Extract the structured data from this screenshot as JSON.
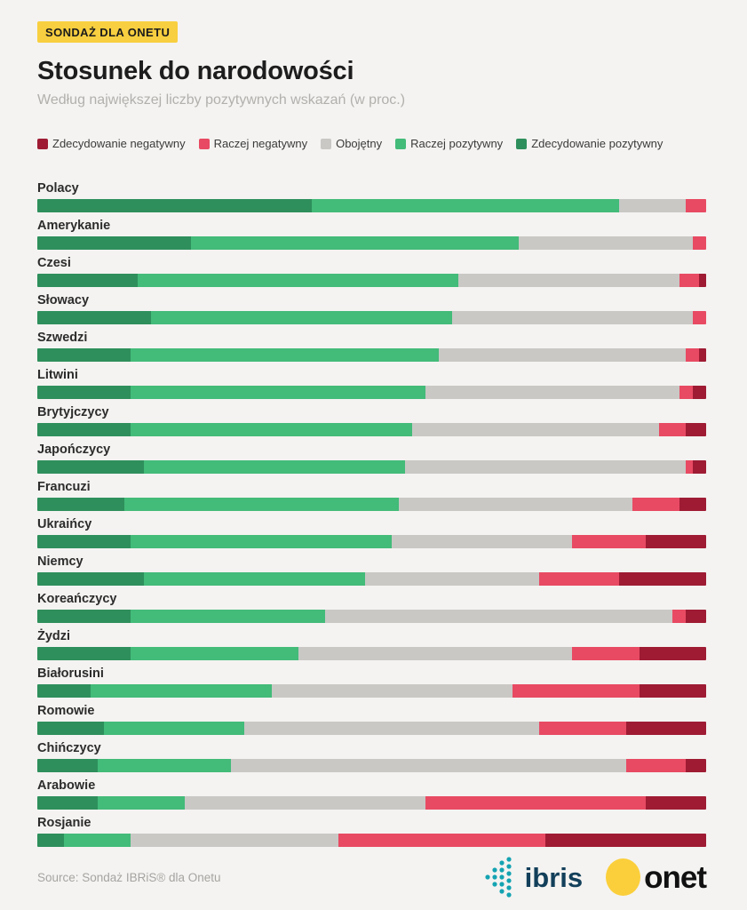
{
  "header": {
    "badge": "SONDAŻ DLA ONETU",
    "title": "Stosunek do narodowości",
    "subtitle": "Według największej liczby pozytywnych wskazań (w proc.)"
  },
  "footer": {
    "source": "Source: Sondaż IBRiS® dla Onetu",
    "ibris_logo_text": "ibris",
    "onet_logo_text": "onet"
  },
  "colors": {
    "background": "#f4f3f1",
    "badge_yellow": "#f8cf40",
    "strongly_negative": "#9e1b33",
    "rather_negative": "#e84a63",
    "neutral": "#c9c8c5",
    "rather_positive": "#43bb79",
    "strongly_positive": "#2e8f5c",
    "ibris_teal": "#14a3b2",
    "ibris_navy": "#123f5a",
    "onet_yellow": "#fbcf3b"
  },
  "chart_data": {
    "type": "bar",
    "stacked": true,
    "orientation": "horizontal",
    "unit": "percent",
    "xlim": [
      0,
      100
    ],
    "grid": false,
    "legend_position": "top",
    "title": "Stosunek do narodowości",
    "subtitle": "Według największej liczby pozytywnych wskazań (w proc.)",
    "legend": [
      {
        "label": "Zdecydowanie negatywny",
        "color": "#9e1b33"
      },
      {
        "label": "Raczej negatywny",
        "color": "#e84a63"
      },
      {
        "label": "Obojętny",
        "color": "#c9c8c5"
      },
      {
        "label": "Raczej pozytywny",
        "color": "#43bb79"
      },
      {
        "label": "Zdecydowanie pozytywny",
        "color": "#2e8f5c"
      }
    ],
    "stack_order_note": "bars are drawn left-to-right: strongly positive, rather positive, neutral, rather negative, strongly negative",
    "categories": [
      "Polacy",
      "Amerykanie",
      "Czesi",
      "Słowacy",
      "Szwedzi",
      "Litwini",
      "Brytyjczycy",
      "Japończycy",
      "Francuzi",
      "Ukraińcy",
      "Niemcy",
      "Koreańczycy",
      "Żydzi",
      "Białorusini",
      "Romowie",
      "Chińczycy",
      "Arabowie",
      "Rosjanie"
    ],
    "series": [
      {
        "name": "Zdecydowanie pozytywny",
        "color": "#2e8f5c",
        "values": [
          41,
          23,
          15,
          17,
          14,
          14,
          14,
          16,
          13,
          14,
          16,
          14,
          14,
          8,
          10,
          9,
          9,
          4
        ]
      },
      {
        "name": "Raczej pozytywny",
        "color": "#43bb79",
        "values": [
          46,
          49,
          48,
          45,
          46,
          44,
          42,
          39,
          41,
          39,
          33,
          29,
          25,
          27,
          21,
          20,
          13,
          10
        ]
      },
      {
        "name": "Obojętny",
        "color": "#c9c8c5",
        "values": [
          10,
          26,
          33,
          36,
          37,
          38,
          37,
          42,
          35,
          27,
          26,
          52,
          41,
          36,
          44,
          59,
          36,
          31
        ]
      },
      {
        "name": "Raczej negatywny",
        "color": "#e84a63",
        "values": [
          3,
          2,
          3,
          2,
          2,
          2,
          4,
          1,
          7,
          11,
          12,
          2,
          10,
          19,
          13,
          9,
          33,
          31
        ]
      },
      {
        "name": "Zdecydowanie negatywny",
        "color": "#9e1b33",
        "values": [
          0,
          0,
          1,
          0,
          1,
          2,
          3,
          2,
          4,
          9,
          13,
          3,
          10,
          10,
          12,
          3,
          9,
          24
        ]
      }
    ]
  }
}
